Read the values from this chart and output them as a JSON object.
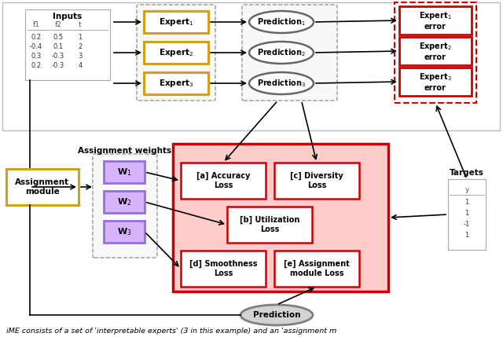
{
  "background_color": "#ffffff",
  "input_table": {
    "headers": [
      "f1",
      "f2",
      "t"
    ],
    "rows": [
      [
        0.2,
        0.5,
        1
      ],
      [
        -0.4,
        0.1,
        2
      ],
      [
        0.3,
        -0.3,
        3
      ],
      [
        0.2,
        -0.3,
        4
      ]
    ]
  },
  "targets_table": {
    "header": "y",
    "rows": [
      1,
      1,
      -1,
      1
    ]
  },
  "colors": {
    "expert_box": "#d4a017",
    "expert_box_fill": "#ffffff",
    "prediction_ellipse": "#808080",
    "error_box": "#cc0000",
    "error_box_fill": "#ffffff",
    "weight_box": "#9370db",
    "weight_box_fill": "#d8b4fe",
    "loss_outer": "#cc0000",
    "loss_outer_fill": "#ffcccc",
    "loss_inner": "#cc0000",
    "loss_inner_fill": "#ffffff",
    "assignment_box": "#d4a017",
    "assignment_fill": "#ffffff",
    "prediction_final_fill": "#d3d3d3",
    "prediction_final_edge": "#808080",
    "arrow": "#000000",
    "dashed_box": "#999999"
  },
  "caption": "iME consists of a set of 'interpretable experts' (3 in this example) and an 'assignment m"
}
